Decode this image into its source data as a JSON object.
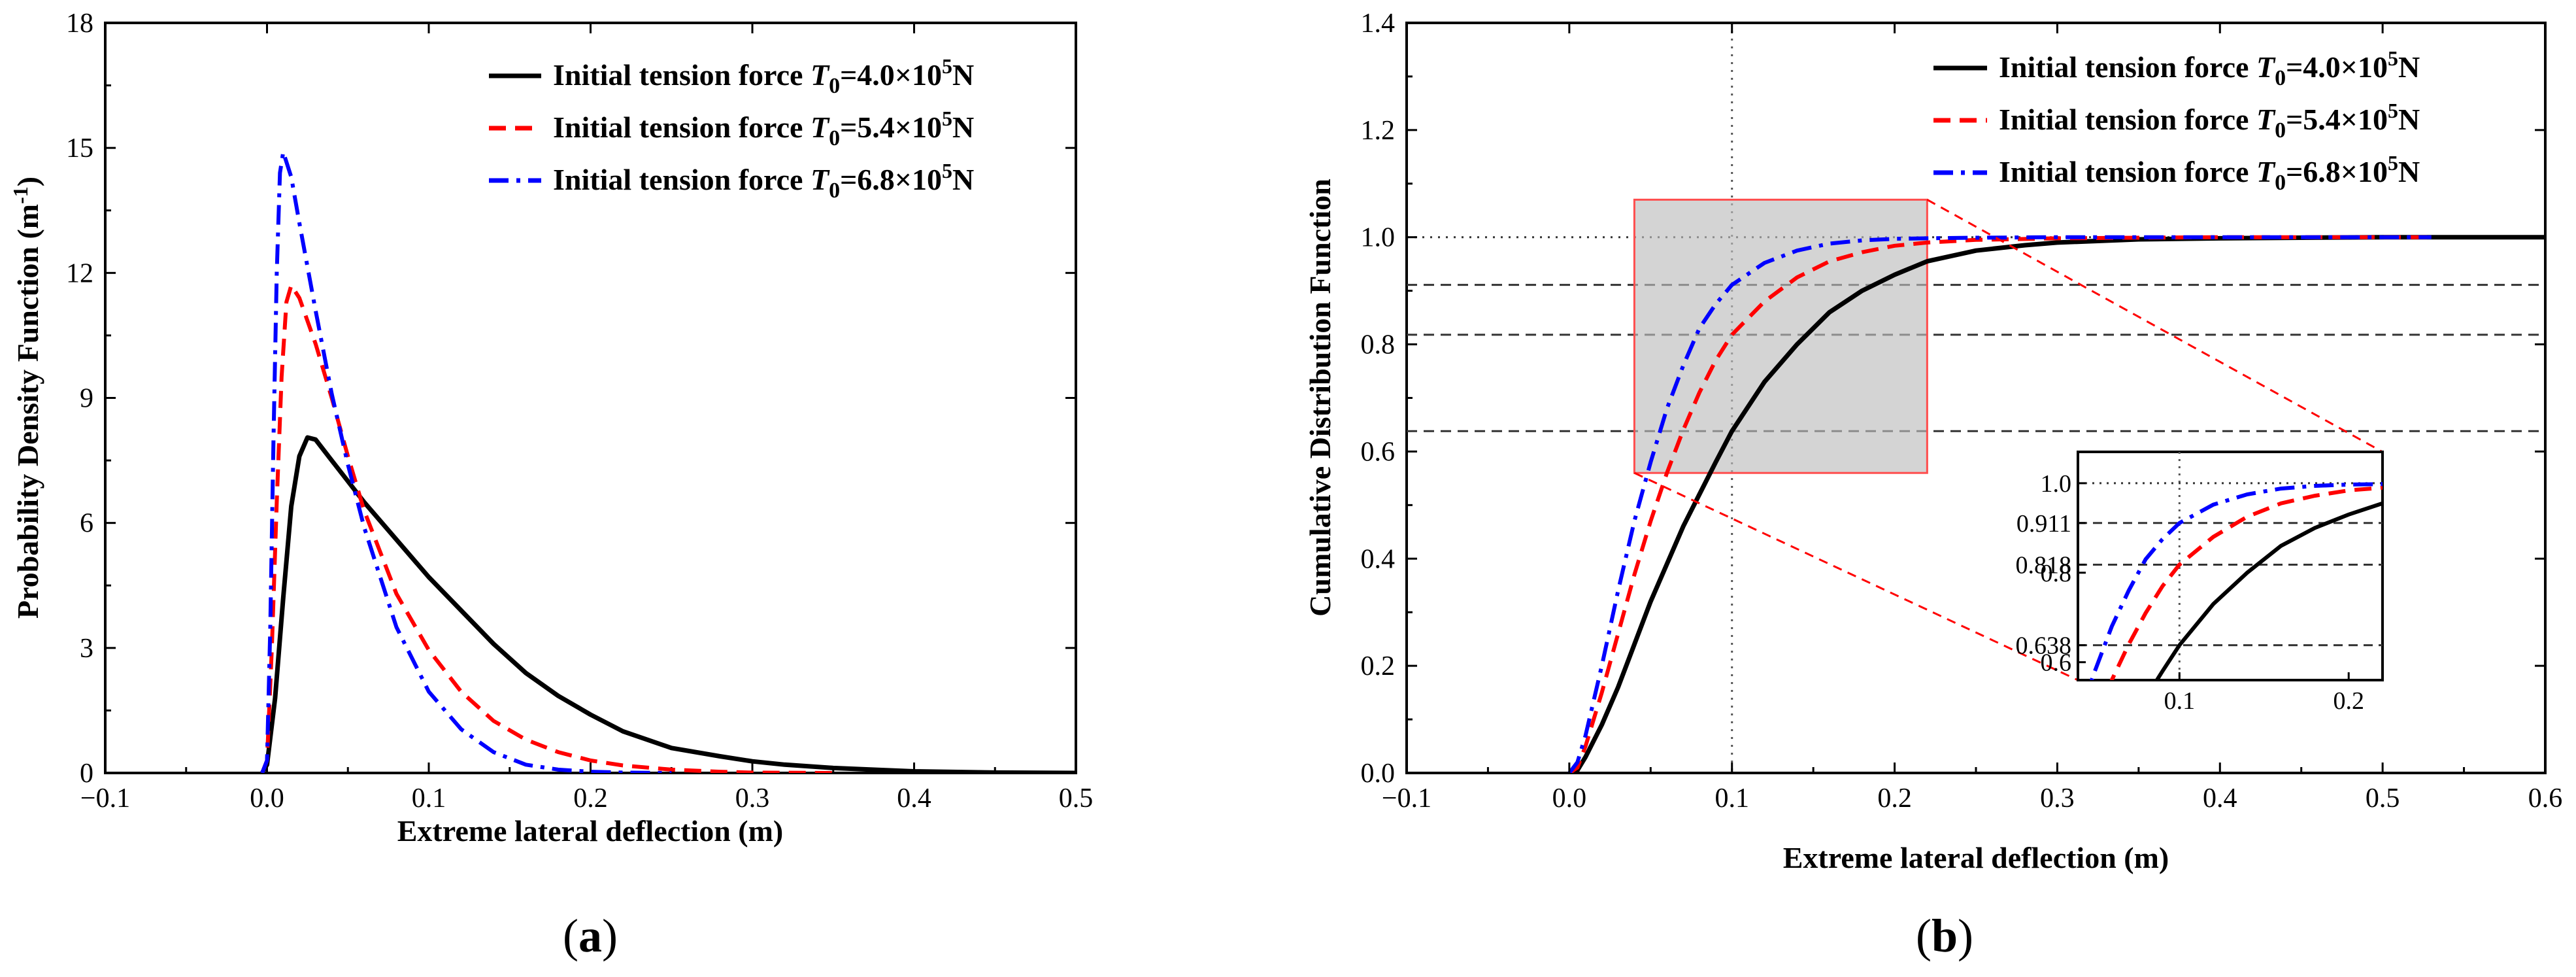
{
  "figure": {
    "caption_a_letter": "a",
    "caption_b_letter": "b"
  },
  "legend": {
    "prefix": "Initial tension force",
    "symbol": "T",
    "subscript": "0",
    "entries": [
      {
        "value": "=4.0×10",
        "exp": "5",
        "unit": "N",
        "color": "#000000",
        "dash": "solid"
      },
      {
        "value": "=5.4×10",
        "exp": "5",
        "unit": "N",
        "color": "#ff0000",
        "dash": "dash"
      },
      {
        "value": "=6.8×10",
        "exp": "5",
        "unit": "N",
        "color": "#0000ff",
        "dash": "dashdot"
      }
    ]
  },
  "chart_data": [
    {
      "id": "a",
      "type": "line",
      "title": "",
      "xlabel": "Extreme lateral deflection (m)",
      "ylabel": "Probability Density Function (m",
      "ylabel_sup": "-1",
      "ylabel_end": ")",
      "xlim": [
        -0.1,
        0.5
      ],
      "ylim": [
        0,
        18
      ],
      "xticks": [
        -0.1,
        0.0,
        0.1,
        0.2,
        0.3,
        0.4,
        0.5
      ],
      "xtick_labels": [
        "−0.1",
        "0.0",
        "0.1",
        "0.2",
        "0.3",
        "0.4",
        "0.5"
      ],
      "yticks": [
        0,
        3,
        6,
        9,
        12,
        15,
        18
      ],
      "ytick_labels": [
        "0",
        "3",
        "6",
        "9",
        "12",
        "15",
        "18"
      ],
      "series": [
        {
          "name": "T0=4.0×10^5N",
          "color": "#000000",
          "dash": "solid",
          "x": [
            -0.003,
            0.0,
            0.005,
            0.01,
            0.015,
            0.02,
            0.025,
            0.03,
            0.04,
            0.05,
            0.06,
            0.08,
            0.1,
            0.12,
            0.14,
            0.16,
            0.18,
            0.2,
            0.22,
            0.25,
            0.28,
            0.3,
            0.32,
            0.35,
            0.38,
            0.4,
            0.45,
            0.5
          ],
          "y": [
            0,
            0.2,
            1.8,
            4.2,
            6.4,
            7.6,
            8.05,
            8.0,
            7.5,
            7.0,
            6.5,
            5.6,
            4.7,
            3.9,
            3.1,
            2.4,
            1.85,
            1.4,
            1.0,
            0.6,
            0.4,
            0.28,
            0.2,
            0.12,
            0.07,
            0.04,
            0.01,
            0.0
          ]
        },
        {
          "name": "T0=5.4×10^5N",
          "color": "#ff0000",
          "dash": "dash",
          "x": [
            -0.003,
            0.0,
            0.003,
            0.006,
            0.009,
            0.012,
            0.015,
            0.02,
            0.03,
            0.04,
            0.05,
            0.06,
            0.08,
            0.1,
            0.12,
            0.14,
            0.16,
            0.18,
            0.2,
            0.22,
            0.25,
            0.28,
            0.3,
            0.35
          ],
          "y": [
            0,
            0.3,
            3.0,
            6.5,
            9.5,
            11.3,
            11.7,
            11.4,
            10.3,
            9.0,
            7.6,
            6.3,
            4.3,
            2.95,
            1.95,
            1.25,
            0.8,
            0.5,
            0.3,
            0.18,
            0.08,
            0.03,
            0.01,
            0.0
          ]
        },
        {
          "name": "T0=6.8×10^5N",
          "color": "#0000ff",
          "dash": "dashdot",
          "x": [
            -0.003,
            0.0,
            0.002,
            0.004,
            0.006,
            0.008,
            0.01,
            0.015,
            0.02,
            0.03,
            0.04,
            0.05,
            0.06,
            0.08,
            0.1,
            0.12,
            0.14,
            0.16,
            0.18,
            0.2,
            0.22,
            0.25
          ],
          "y": [
            0,
            0.3,
            3.5,
            8.0,
            12.0,
            14.4,
            14.9,
            14.3,
            13.2,
            11.1,
            9.1,
            7.4,
            5.9,
            3.5,
            1.95,
            1.05,
            0.5,
            0.2,
            0.08,
            0.03,
            0.01,
            0.0
          ]
        }
      ]
    },
    {
      "id": "b",
      "type": "line",
      "title": "",
      "xlabel": "Extreme lateral deflection (m)",
      "ylabel": "Cumulative Distribution Function",
      "xlim": [
        -0.1,
        0.6
      ],
      "ylim": [
        0.0,
        1.4
      ],
      "xticks": [
        -0.1,
        0.0,
        0.1,
        0.2,
        0.3,
        0.4,
        0.5,
        0.6
      ],
      "xtick_labels": [
        "−0.1",
        "0.0",
        "0.1",
        "0.2",
        "0.3",
        "0.4",
        "0.5",
        "0.6"
      ],
      "yticks": [
        0.0,
        0.2,
        0.4,
        0.6,
        0.8,
        1.0,
        1.2,
        1.4
      ],
      "ytick_labels": [
        "0.0",
        "0.2",
        "0.4",
        "0.6",
        "0.8",
        "1.0",
        "1.2",
        "1.4"
      ],
      "reference_lines": {
        "x": 0.1,
        "y": [
          1.0,
          0.911,
          0.818,
          0.638
        ]
      },
      "zoom_box": {
        "x": [
          0.04,
          0.22
        ],
        "y": [
          0.56,
          1.07
        ]
      },
      "series": [
        {
          "name": "T0=4.0×10^5N",
          "color": "#000000",
          "dash": "solid",
          "x": [
            0.0,
            0.005,
            0.01,
            0.02,
            0.03,
            0.04,
            0.05,
            0.06,
            0.07,
            0.08,
            0.09,
            0.1,
            0.12,
            0.14,
            0.16,
            0.18,
            0.2,
            0.22,
            0.25,
            0.28,
            0.3,
            0.35,
            0.4,
            0.45,
            0.5,
            0.53,
            0.6
          ],
          "y": [
            0.0,
            0.005,
            0.03,
            0.09,
            0.16,
            0.24,
            0.32,
            0.39,
            0.46,
            0.52,
            0.58,
            0.638,
            0.73,
            0.8,
            0.86,
            0.9,
            0.93,
            0.955,
            0.975,
            0.985,
            0.99,
            0.996,
            0.998,
            0.999,
            1.0,
            1.0,
            1.0
          ]
        },
        {
          "name": "T0=5.4×10^5N",
          "color": "#ff0000",
          "dash": "dash",
          "x": [
            0.0,
            0.005,
            0.01,
            0.02,
            0.03,
            0.04,
            0.05,
            0.06,
            0.07,
            0.08,
            0.09,
            0.1,
            0.12,
            0.14,
            0.16,
            0.18,
            0.2,
            0.22,
            0.25,
            0.3,
            0.35,
            0.4,
            0.45,
            0.53
          ],
          "y": [
            0.0,
            0.01,
            0.05,
            0.15,
            0.26,
            0.37,
            0.47,
            0.56,
            0.64,
            0.71,
            0.77,
            0.818,
            0.88,
            0.925,
            0.955,
            0.972,
            0.984,
            0.99,
            0.995,
            0.998,
            0.999,
            1.0,
            1.0,
            1.0
          ]
        },
        {
          "name": "T0=6.8×10^5N",
          "color": "#0000ff",
          "dash": "dashdot",
          "x": [
            0.0,
            0.005,
            0.01,
            0.02,
            0.03,
            0.04,
            0.05,
            0.06,
            0.07,
            0.08,
            0.09,
            0.1,
            0.12,
            0.14,
            0.16,
            0.18,
            0.2,
            0.22,
            0.25,
            0.3,
            0.35,
            0.4,
            0.45,
            0.53
          ],
          "y": [
            0.0,
            0.02,
            0.07,
            0.2,
            0.34,
            0.47,
            0.58,
            0.68,
            0.76,
            0.83,
            0.875,
            0.911,
            0.952,
            0.975,
            0.988,
            0.994,
            0.997,
            0.998,
            0.999,
            1.0,
            1.0,
            1.0,
            1.0,
            1.0
          ]
        }
      ],
      "inset": {
        "xlim": [
          0.04,
          0.22
        ],
        "ylim": [
          0.56,
          1.07
        ],
        "xticks": [
          0.1,
          0.2
        ],
        "xtick_labels": [
          "0.1",
          "0.2"
        ],
        "yticks": [
          0.6,
          0.638,
          0.8,
          0.818,
          0.911,
          1.0
        ],
        "ytick_labels": [
          "0.6",
          "0.638",
          "0.8",
          "0.818",
          "0.911",
          "1.0"
        ]
      }
    }
  ]
}
